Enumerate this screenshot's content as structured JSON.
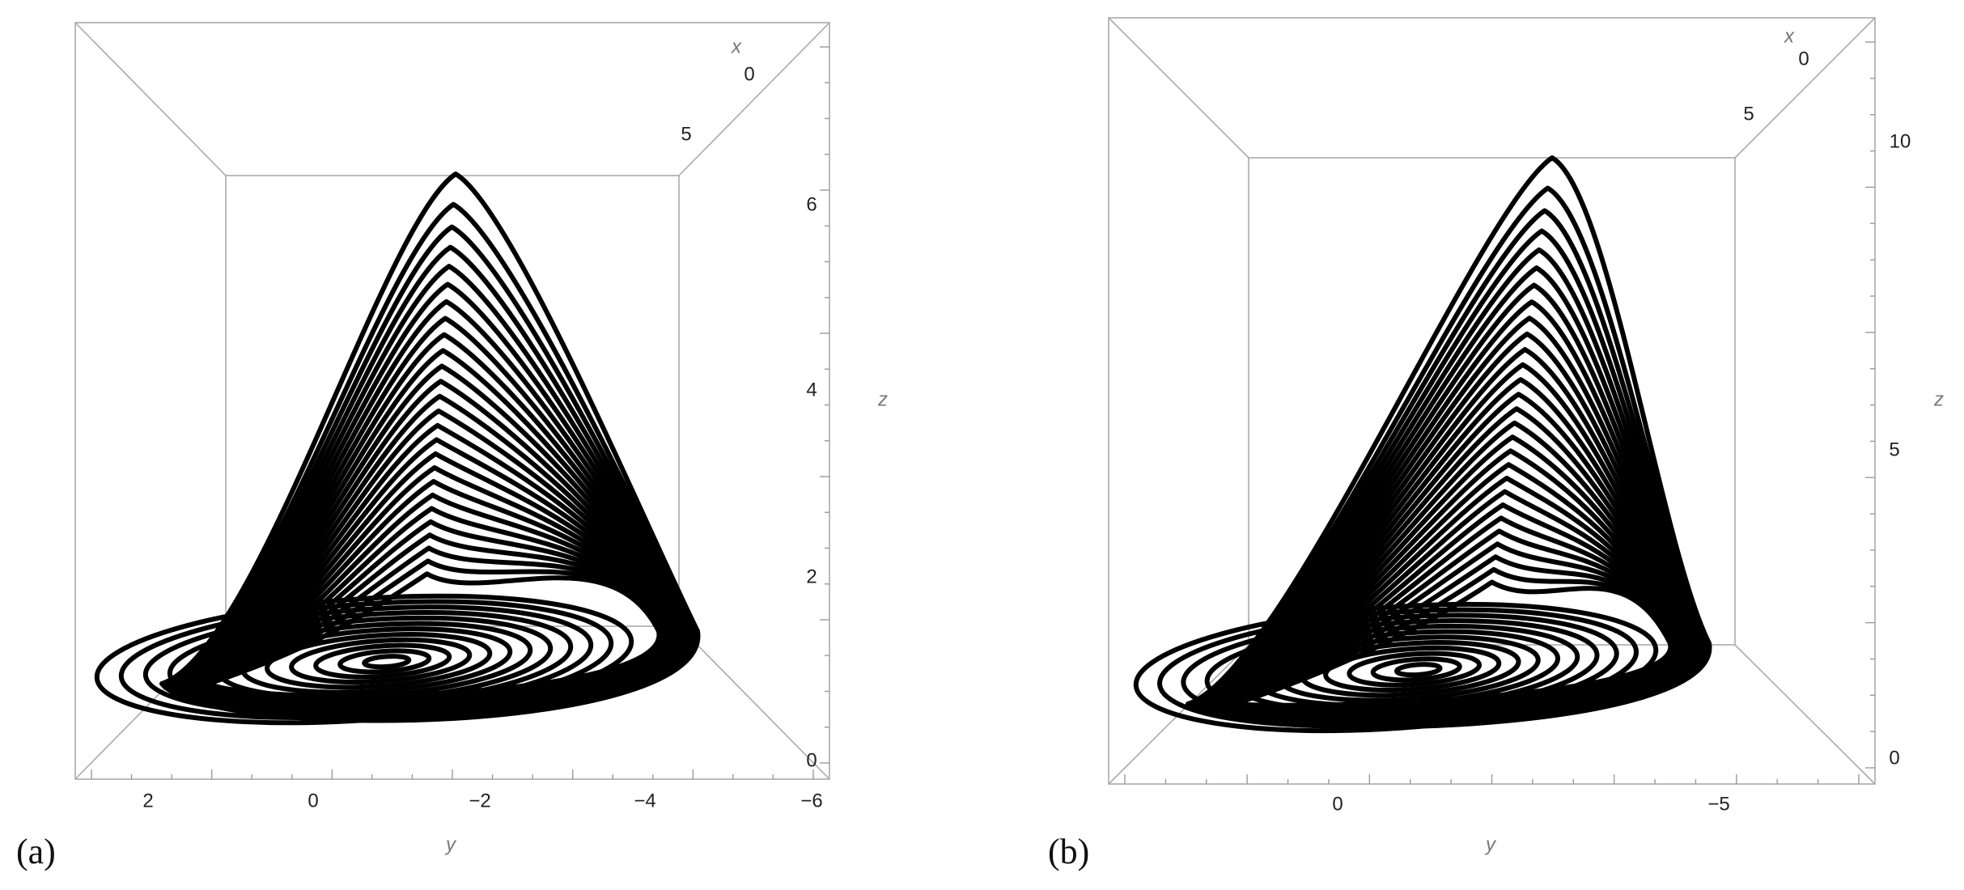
{
  "panels": [
    {
      "label": "(a)",
      "x_axis": {
        "title": "x",
        "ticks": [
          "0",
          "5"
        ]
      },
      "y_axis": {
        "title": "y",
        "ticks": [
          "2",
          "0",
          "−2",
          "−4",
          "−6"
        ]
      },
      "z_axis": {
        "title": "z",
        "ticks": [
          "0",
          "2",
          "4",
          "6"
        ]
      }
    },
    {
      "label": "(b)",
      "x_axis": {
        "title": "x",
        "ticks": [
          "0",
          "5"
        ]
      },
      "y_axis": {
        "title": "y",
        "ticks": [
          "0",
          "−5"
        ]
      },
      "z_axis": {
        "title": "z",
        "ticks": [
          "0",
          "5",
          "10"
        ]
      }
    }
  ]
}
